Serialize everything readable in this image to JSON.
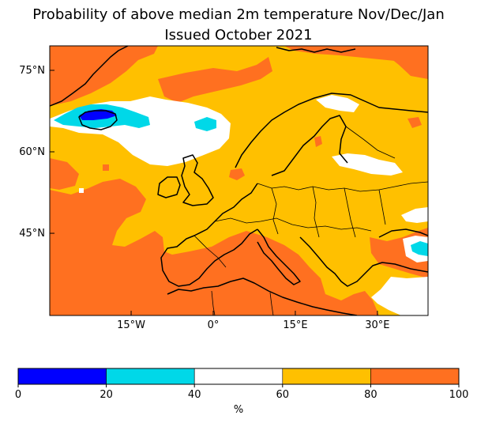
{
  "title_line1": "Probability of above median 2m temperature Nov/Dec/Jan",
  "title_line2": "Issued October 2021",
  "map": {
    "lon_ticks": [
      {
        "lon": -15,
        "label": "15°W"
      },
      {
        "lon": 0,
        "label": "0°"
      },
      {
        "lon": 15,
        "label": "15°E"
      },
      {
        "lon": 30,
        "label": "30°E"
      }
    ],
    "lat_ticks": [
      {
        "lat": 75,
        "label": "75°N"
      },
      {
        "lat": 60,
        "label": "60°N"
      },
      {
        "lat": 45,
        "label": "45°N"
      }
    ],
    "lon_range": [
      -30,
      40
    ],
    "lat_range": [
      29,
      80
    ]
  },
  "colorbar": {
    "label": "%",
    "ticks": [
      "0",
      "20",
      "40",
      "60",
      "80",
      "100"
    ],
    "bins": [
      {
        "range": [
          0,
          20
        ],
        "color": "#0000ff"
      },
      {
        "range": [
          20,
          40
        ],
        "color": "#00d8e8"
      },
      {
        "range": [
          40,
          60
        ],
        "color": "#ffffff"
      },
      {
        "range": [
          60,
          80
        ],
        "color": "#ffc000"
      },
      {
        "range": [
          80,
          100
        ],
        "color": "#ff7020"
      }
    ]
  },
  "colors": {
    "prob_80_100": "#ff7020",
    "prob_60_80": "#ffc000",
    "prob_40_60": "#ffffff",
    "prob_20_40": "#00d8e8",
    "prob_0_20": "#0000ff"
  }
}
